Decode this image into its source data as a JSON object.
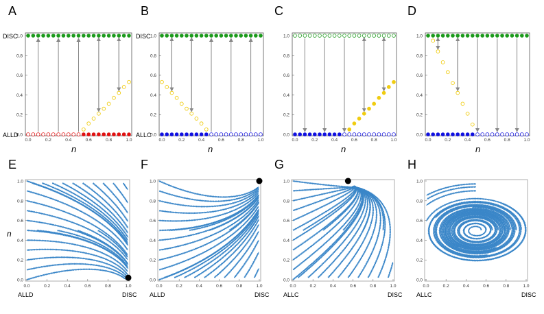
{
  "figure": {
    "top_panels": [
      {
        "letter": "A",
        "bottom_label": "ALLD",
        "top_label": "DISC",
        "xlabel": "n",
        "ylim": [
          0,
          1
        ],
        "xlim": [
          0,
          1
        ],
        "yticks": [
          "0.0",
          "0.2",
          "0.4",
          "0.6",
          "0.8",
          "1.0"
        ],
        "xticks": [
          "0.0",
          "0.2",
          "0.4",
          "0.6",
          "0.8",
          "1.0"
        ],
        "top_row": {
          "color": "#1a9a1a",
          "filled": true
        },
        "bottom_row": {
          "color": "#e01010",
          "filled_from": 0.55
        },
        "curve": {
          "x": [
            0.55,
            0.6,
            0.65,
            0.7,
            0.75,
            0.8,
            0.85,
            0.9,
            0.95,
            1.0
          ],
          "y": [
            0.05,
            0.11,
            0.16,
            0.21,
            0.26,
            0.31,
            0.37,
            0.42,
            0.48,
            0.53
          ],
          "filled": false
        },
        "arrows": [
          {
            "x": 0.1,
            "dir": "up"
          },
          {
            "x": 0.3,
            "dir": "up"
          },
          {
            "x": 0.5,
            "dir": "up"
          },
          {
            "x": 0.7,
            "dir": "up",
            "y0": 0.21
          },
          {
            "x": 0.9,
            "dir": "up",
            "y0": 0.42
          },
          {
            "x": 0.7,
            "dir": "down",
            "y1": 0.21
          },
          {
            "x": 0.9,
            "dir": "down",
            "y1": 0.42
          }
        ]
      },
      {
        "letter": "B",
        "bottom_label": "ALLC",
        "top_label": "DISC",
        "xlabel": "n",
        "ylim": [
          0,
          1
        ],
        "xlim": [
          0,
          1
        ],
        "yticks": [
          "0.0",
          "0.2",
          "0.4",
          "0.6",
          "0.8",
          "1.0"
        ],
        "xticks": [
          "0.0",
          "0.2",
          "0.4",
          "0.6",
          "0.8",
          "1.0"
        ],
        "top_row": {
          "color": "#1a9a1a",
          "filled": true
        },
        "bottom_row": {
          "color": "#1010e0",
          "filled_to": 0.5
        },
        "curve": {
          "x": [
            0.0,
            0.05,
            0.1,
            0.15,
            0.2,
            0.25,
            0.3,
            0.35,
            0.4,
            0.45
          ],
          "y": [
            0.53,
            0.48,
            0.42,
            0.37,
            0.31,
            0.26,
            0.21,
            0.16,
            0.11,
            0.05
          ],
          "filled": false
        },
        "arrows": [
          {
            "x": 0.1,
            "dir": "up",
            "y0": 0.42
          },
          {
            "x": 0.3,
            "dir": "up",
            "y0": 0.21
          },
          {
            "x": 0.1,
            "dir": "down",
            "y1": 0.42
          },
          {
            "x": 0.3,
            "dir": "down",
            "y1": 0.21
          },
          {
            "x": 0.5,
            "dir": "up"
          },
          {
            "x": 0.7,
            "dir": "up"
          },
          {
            "x": 0.9,
            "dir": "up"
          }
        ]
      },
      {
        "letter": "C",
        "bottom_label": "",
        "top_label": "",
        "xlabel": "n",
        "ylim": [
          0,
          1
        ],
        "xlim": [
          0,
          1
        ],
        "yticks": [
          "0.0",
          "0.2",
          "0.4",
          "0.6",
          "0.8",
          "1.0"
        ],
        "xticks": [
          "0.0",
          "0.2",
          "0.4",
          "0.6",
          "0.8",
          "1.0"
        ],
        "top_row": {
          "color": "#1a9a1a",
          "filled": false
        },
        "bottom_row": {
          "color": "#1010e0",
          "filled_to": 0.5
        },
        "curve": {
          "x": [
            0.55,
            0.6,
            0.65,
            0.7,
            0.75,
            0.8,
            0.85,
            0.9,
            0.95,
            1.0
          ],
          "y": [
            0.05,
            0.11,
            0.16,
            0.21,
            0.26,
            0.31,
            0.37,
            0.42,
            0.48,
            0.53
          ],
          "filled": true
        },
        "arrows": [
          {
            "x": 0.1,
            "dir": "down"
          },
          {
            "x": 0.3,
            "dir": "down"
          },
          {
            "x": 0.5,
            "dir": "down"
          },
          {
            "x": 0.7,
            "dir": "down",
            "y1": 0.21
          },
          {
            "x": 0.9,
            "dir": "down",
            "y1": 0.42
          },
          {
            "x": 0.7,
            "dir": "up",
            "y0": 0.21
          },
          {
            "x": 0.9,
            "dir": "up",
            "y0": 0.42
          }
        ]
      },
      {
        "letter": "D",
        "bottom_label": "",
        "top_label": "",
        "xlabel": "n",
        "ylim": [
          0,
          1
        ],
        "xlim": [
          0,
          1
        ],
        "yticks": [
          "0.0",
          "0.2",
          "0.4",
          "0.6",
          "0.8",
          "1.0"
        ],
        "xticks": [
          "0.0",
          "0.2",
          "0.4",
          "0.6",
          "0.8",
          "1.0"
        ],
        "top_row": {
          "color": "#1a9a1a",
          "filled": true
        },
        "bottom_row": {
          "color": "#1010e0",
          "filled_to": 0.5
        },
        "curve": {
          "x": [
            0.05,
            0.1,
            0.15,
            0.2,
            0.25,
            0.3,
            0.35,
            0.4,
            0.45
          ],
          "y": [
            0.95,
            0.84,
            0.73,
            0.63,
            0.52,
            0.42,
            0.31,
            0.21,
            0.1
          ],
          "filled": false
        },
        "arrows": [
          {
            "x": 0.1,
            "dir": "up",
            "y0": 0.84
          },
          {
            "x": 0.3,
            "dir": "up",
            "y0": 0.42
          },
          {
            "x": 0.1,
            "dir": "down",
            "y1": 0.84
          },
          {
            "x": 0.3,
            "dir": "down",
            "y1": 0.42
          },
          {
            "x": 0.5,
            "dir": "down"
          },
          {
            "x": 0.7,
            "dir": "down"
          },
          {
            "x": 0.9,
            "dir": "down"
          }
        ]
      }
    ],
    "bottom_panels": [
      {
        "letter": "E",
        "xleft": "ALLD",
        "xright": "DISC",
        "ylabel": "n",
        "xticks": [
          "0.0",
          "0.2",
          "0.4",
          "0.6",
          "0.8",
          "1.0"
        ],
        "yticks": [
          "0.0",
          "0.2",
          "0.4",
          "0.6",
          "0.8",
          "1.0"
        ],
        "field": "sink_bottom_right",
        "stable_point": [
          1.0,
          0.02
        ]
      },
      {
        "letter": "F",
        "xleft": "ALLD",
        "xright": "DISC",
        "ylabel": "",
        "xticks": [
          "0.0",
          "0.2",
          "0.4",
          "0.6",
          "0.8",
          "1.0"
        ],
        "yticks": [
          "0.0",
          "0.2",
          "0.4",
          "0.6",
          "0.8",
          "1.0"
        ],
        "field": "sink_top_right",
        "stable_point": [
          1.0,
          1.0
        ]
      },
      {
        "letter": "G",
        "xleft": "ALLC",
        "xright": "DISC",
        "ylabel": "",
        "xticks": [
          "0.0",
          "0.2",
          "0.4",
          "0.6",
          "0.8",
          "1.0"
        ],
        "yticks": [
          "0.0",
          "0.2",
          "0.4",
          "0.6",
          "0.8",
          "1.0"
        ],
        "field": "sink_top_mid",
        "stable_point": [
          0.55,
          1.0
        ]
      },
      {
        "letter": "H",
        "xleft": "ALLC",
        "xright": "DISC",
        "ylabel": "",
        "xticks": [
          "0.0",
          "0.2",
          "0.4",
          "0.6",
          "0.8",
          "1.0"
        ],
        "yticks": [
          "0.0",
          "0.2",
          "0.4",
          "0.6",
          "0.8",
          "1.0"
        ],
        "field": "center",
        "stable_point": null,
        "center": [
          0.5,
          0.5
        ]
      }
    ],
    "colors": {
      "arrow": "#888888",
      "stream": "#3a86c8",
      "yellow": "#f0cc10",
      "green": "#1a9a1a",
      "black": "#000000"
    }
  }
}
